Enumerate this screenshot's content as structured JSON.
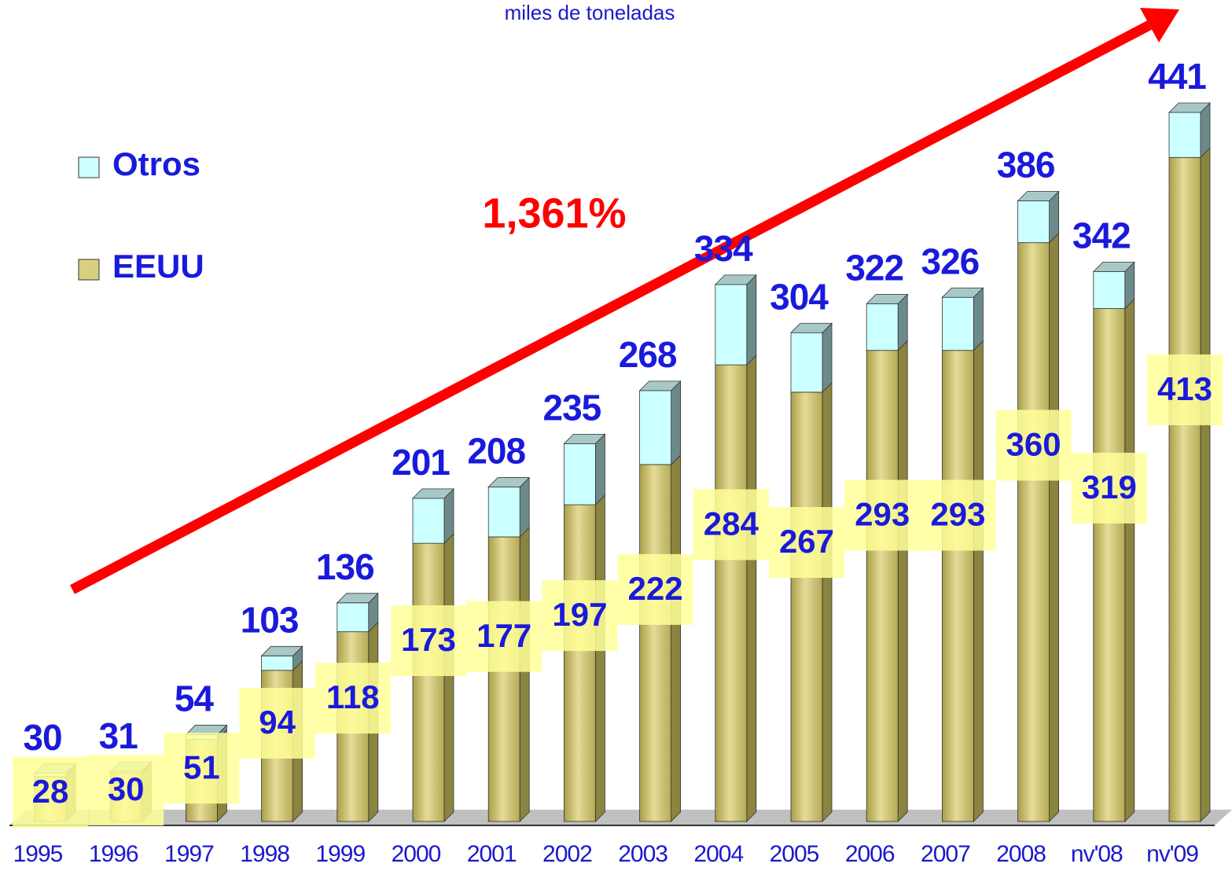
{
  "chart_data": {
    "type": "stacked-bar-3d",
    "subtitle": "miles de toneladas",
    "annotation": "1,361%",
    "categories": [
      "1995",
      "1996",
      "1997",
      "1998",
      "1999",
      "2000",
      "2001",
      "2002",
      "2003",
      "2004",
      "2005",
      "2006",
      "2007",
      "2008",
      "nv'08",
      "nv'09"
    ],
    "series": [
      {
        "name": "EEUU",
        "color": "#c9c070",
        "values": [
          28,
          30,
          51,
          94,
          118,
          173,
          177,
          197,
          222,
          284,
          267,
          293,
          293,
          360,
          319,
          413
        ]
      },
      {
        "name": "Otros",
        "color": "#ccffff",
        "values": [
          2,
          1,
          3,
          9,
          18,
          28,
          31,
          38,
          46,
          50,
          37,
          29,
          33,
          26,
          23,
          28
        ]
      }
    ],
    "totals": [
      30,
      31,
      54,
      103,
      136,
      201,
      208,
      235,
      268,
      334,
      304,
      322,
      326,
      386,
      342,
      441
    ]
  }
}
